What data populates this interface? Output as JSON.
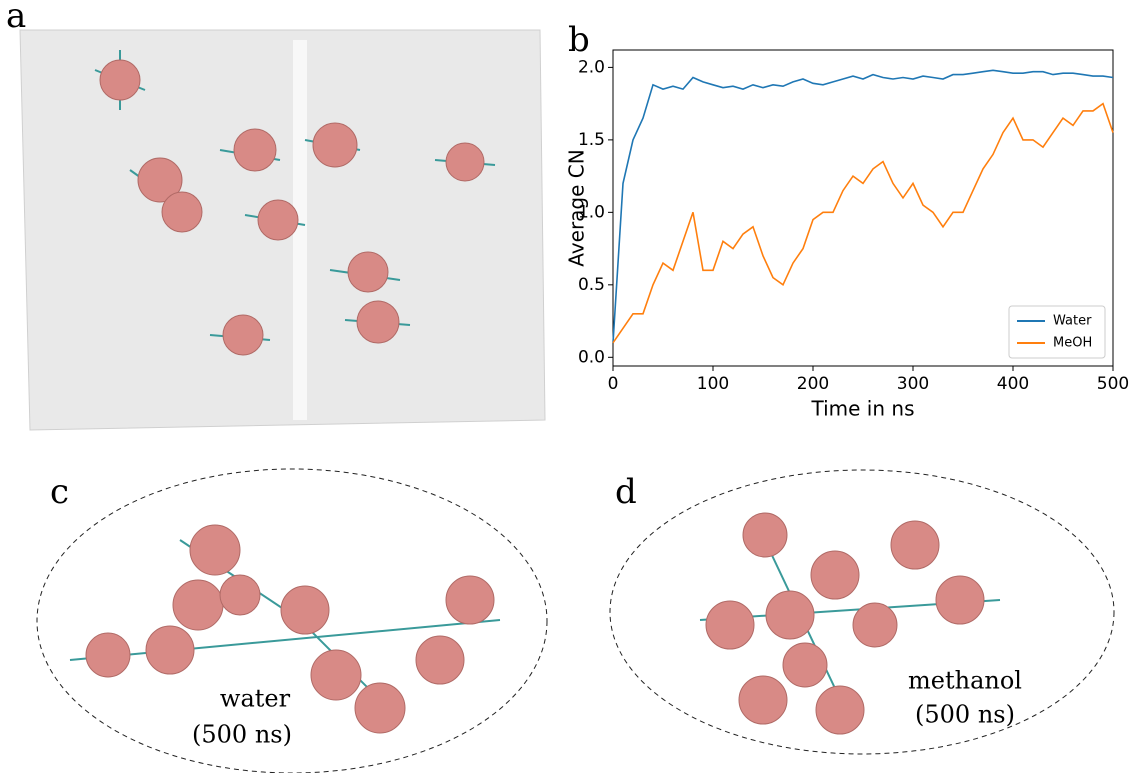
{
  "panels": {
    "a": "a",
    "b": "b",
    "c": "c",
    "d": "d",
    "c_caption": [
      "water",
      "(500  ns)"
    ],
    "d_caption": [
      "methanol",
      "(500  ns)"
    ]
  },
  "chart_data": {
    "type": "line",
    "xlabel": "Time in ns",
    "ylabel": "Average CN",
    "x": [
      0,
      10,
      20,
      30,
      40,
      50,
      60,
      70,
      80,
      90,
      100,
      110,
      120,
      130,
      140,
      150,
      160,
      170,
      180,
      190,
      200,
      210,
      220,
      230,
      240,
      250,
      260,
      270,
      280,
      290,
      300,
      310,
      320,
      330,
      340,
      350,
      360,
      370,
      380,
      390,
      400,
      410,
      420,
      430,
      440,
      450,
      460,
      470,
      480,
      490,
      500
    ],
    "series": [
      {
        "name": "Water",
        "color": "#1f77b4",
        "values": [
          0.1,
          1.2,
          1.5,
          1.65,
          1.88,
          1.85,
          1.87,
          1.85,
          1.93,
          1.9,
          1.88,
          1.86,
          1.87,
          1.85,
          1.88,
          1.86,
          1.88,
          1.87,
          1.9,
          1.92,
          1.89,
          1.88,
          1.9,
          1.92,
          1.94,
          1.92,
          1.95,
          1.93,
          1.92,
          1.93,
          1.92,
          1.94,
          1.93,
          1.92,
          1.95,
          1.95,
          1.96,
          1.97,
          1.98,
          1.97,
          1.96,
          1.96,
          1.97,
          1.97,
          1.95,
          1.96,
          1.96,
          1.95,
          1.94,
          1.94,
          1.93
        ]
      },
      {
        "name": "MeOH",
        "color": "#ff7f0e",
        "values": [
          0.1,
          0.2,
          0.3,
          0.3,
          0.5,
          0.65,
          0.6,
          0.8,
          1.0,
          0.6,
          0.6,
          0.8,
          0.75,
          0.85,
          0.9,
          0.7,
          0.55,
          0.5,
          0.65,
          0.75,
          0.95,
          1.0,
          1.0,
          1.15,
          1.25,
          1.2,
          1.3,
          1.35,
          1.2,
          1.1,
          1.2,
          1.05,
          1.0,
          0.9,
          1.0,
          1.0,
          1.15,
          1.3,
          1.4,
          1.55,
          1.65,
          1.5,
          1.5,
          1.45,
          1.55,
          1.65,
          1.6,
          1.7,
          1.7,
          1.75,
          1.55
        ]
      }
    ],
    "xlim": [
      0,
      500
    ],
    "xticks": [
      0,
      100,
      200,
      300,
      400,
      500
    ],
    "ylim": [
      -0.06,
      2.12
    ],
    "yticks": [
      {
        "value": 0,
        "label": "0.0"
      },
      {
        "value": 0.5,
        "label": "0.5"
      },
      {
        "value": 1,
        "label": "1.0"
      },
      {
        "value": 1.5,
        "label": "1.5"
      },
      {
        "value": 2,
        "label": "2.0"
      }
    ],
    "legend": "lower right"
  }
}
